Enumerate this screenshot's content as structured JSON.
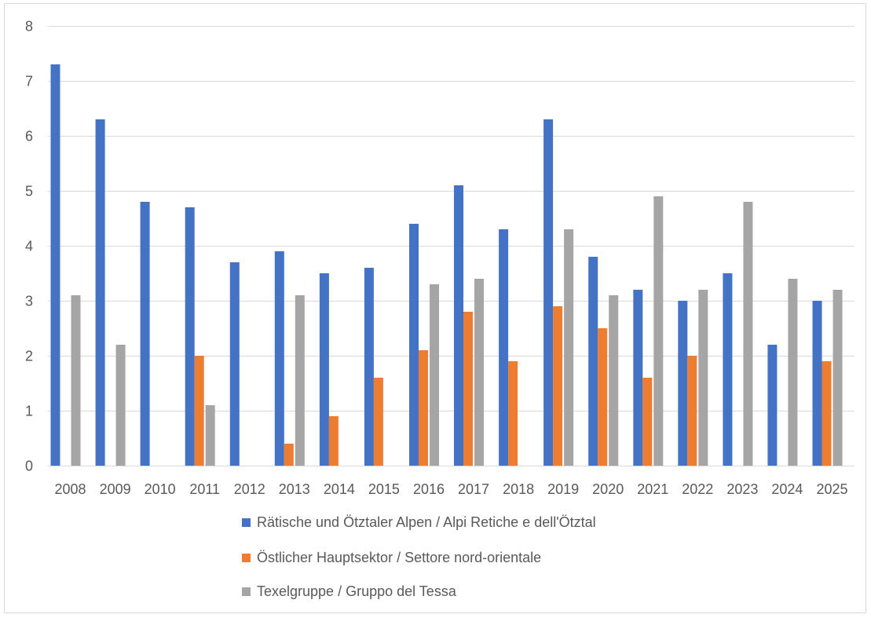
{
  "chart_data": {
    "type": "bar",
    "title": "",
    "xlabel": "",
    "ylabel": "",
    "ylim": [
      0,
      8
    ],
    "yticks": [
      0,
      1,
      2,
      3,
      4,
      5,
      6,
      7,
      8
    ],
    "grid": true,
    "legend_position": "bottom",
    "categories": [
      "2008",
      "2009",
      "2010",
      "2011",
      "2012",
      "2013",
      "2014",
      "2015",
      "2016",
      "2017",
      "2018",
      "2019",
      "2020",
      "2021",
      "2022",
      "2023",
      "2024",
      "2025"
    ],
    "series": [
      {
        "name": "Rätische und Ötztaler Alpen / Alpi Retiche e dell'Ötztal",
        "color": "#4472c4",
        "values": [
          7.3,
          6.3,
          4.8,
          4.7,
          3.7,
          3.9,
          3.5,
          3.6,
          4.4,
          5.1,
          4.3,
          6.3,
          3.8,
          3.2,
          3.0,
          3.5,
          2.2,
          3.0
        ]
      },
      {
        "name": "Östlicher Hauptsektor / Settore nord-orientale",
        "color": "#ed7d31",
        "values": [
          null,
          null,
          null,
          2.0,
          null,
          0.4,
          0.9,
          1.6,
          2.1,
          2.8,
          1.9,
          2.9,
          2.5,
          1.6,
          2.0,
          null,
          null,
          1.9
        ]
      },
      {
        "name": "Texelgruppe / Gruppo del Tessa",
        "color": "#a5a5a5",
        "values": [
          3.1,
          2.2,
          null,
          1.1,
          null,
          3.1,
          null,
          null,
          3.3,
          3.4,
          null,
          4.3,
          3.1,
          4.9,
          3.2,
          4.8,
          3.4,
          3.2
        ]
      }
    ]
  }
}
